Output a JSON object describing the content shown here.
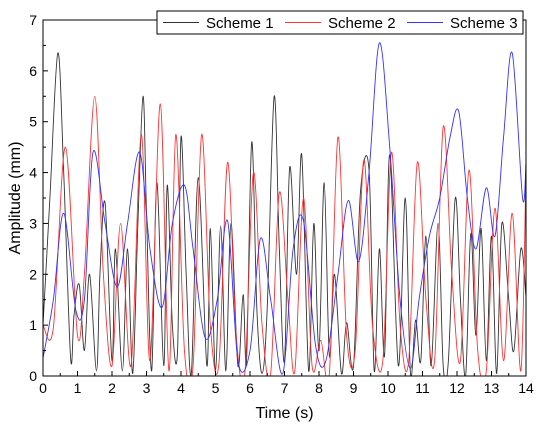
{
  "chart_data": {
    "type": "line",
    "xlabel": "Time (s)",
    "ylabel": "Amplitude (mm)",
    "xlim": [
      0,
      14
    ],
    "ylim": [
      0,
      7
    ],
    "x_ticks": [
      "0",
      "1",
      "2",
      "3",
      "4",
      "5",
      "6",
      "7",
      "8",
      "9",
      "10",
      "11",
      "12",
      "13",
      "14"
    ],
    "y_ticks": [
      "0",
      "1",
      "2",
      "3",
      "4",
      "5",
      "6",
      "7"
    ],
    "grid": false,
    "legend_position": "top-right",
    "series": [
      {
        "name": "Scheme 1",
        "color": "#333333",
        "x": [
          0,
          0.2,
          0.43,
          0.6,
          0.8,
          0.9,
          1.05,
          1.2,
          1.35,
          1.55,
          1.65,
          1.8,
          2.0,
          2.1,
          2.3,
          2.45,
          2.6,
          2.75,
          2.9,
          3.0,
          3.15,
          3.3,
          3.5,
          3.6,
          3.75,
          3.9,
          4.0,
          4.15,
          4.3,
          4.5,
          4.75,
          4.85,
          5.0,
          5.15,
          5.3,
          5.45,
          5.65,
          5.8,
          5.9,
          6.05,
          6.2,
          6.35,
          6.5,
          6.7,
          6.85,
          7.0,
          7.15,
          7.35,
          7.5,
          7.7,
          7.85,
          8.0,
          8.15,
          8.3,
          8.45,
          8.65,
          8.8,
          9.0,
          9.2,
          9.45,
          9.6,
          9.75,
          9.9,
          10.05,
          10.3,
          10.5,
          10.65,
          10.8,
          10.95,
          11.1,
          11.25,
          11.45,
          11.6,
          11.75,
          11.95,
          12.1,
          12.25,
          12.4,
          12.55,
          12.7,
          12.85,
          13.0,
          13.15,
          13.3,
          13.5,
          13.65,
          13.85,
          14.0
        ],
        "y": [
          1.0,
          3.5,
          6.35,
          4.0,
          0.35,
          1.2,
          1.8,
          0.5,
          2.0,
          0.1,
          2.0,
          3.4,
          0.3,
          2.5,
          0.1,
          2.5,
          0.05,
          3.0,
          5.5,
          3.2,
          0.1,
          3.8,
          0.2,
          3.75,
          1.0,
          0.5,
          4.7,
          2.0,
          0.05,
          3.9,
          0.2,
          2.9,
          0.1,
          2.95,
          0.1,
          3.0,
          0.2,
          1.6,
          0.3,
          4.6,
          1.3,
          0.05,
          1.35,
          5.5,
          2.5,
          0.3,
          4.1,
          2.0,
          4.35,
          0.1,
          3.0,
          0.5,
          3.8,
          0.4,
          2.0,
          0.05,
          1.05,
          0.2,
          3.6,
          4.05,
          0.1,
          2.5,
          0.4,
          4.35,
          0.2,
          3.5,
          0.05,
          1.1,
          0.3,
          2.75,
          0.2,
          3.0,
          0.2,
          0.3,
          3.5,
          1.5,
          0.0,
          2.8,
          0.8,
          2.9,
          0.3,
          2.75,
          0.05,
          3.0,
          1.5,
          0.5,
          2.5,
          1.55
        ]
      },
      {
        "name": "Scheme 2",
        "color": "#ff3333",
        "x": [
          0,
          0.3,
          0.65,
          1.0,
          1.2,
          1.5,
          1.75,
          2.0,
          2.25,
          2.55,
          2.85,
          3.1,
          3.4,
          3.65,
          3.85,
          4.1,
          4.35,
          4.6,
          4.85,
          5.1,
          5.35,
          5.6,
          5.85,
          6.1,
          6.35,
          6.6,
          6.85,
          7.1,
          7.3,
          7.55,
          7.8,
          8.05,
          8.3,
          8.55,
          8.8,
          9.05,
          9.3,
          9.55,
          9.85,
          10.1,
          10.35,
          10.6,
          10.85,
          11.1,
          11.35,
          11.6,
          11.85,
          12.1,
          12.35,
          12.6,
          12.85,
          13.1,
          13.35,
          13.6,
          13.85,
          14.0
        ],
        "y": [
          1.0,
          0.95,
          4.5,
          0.8,
          2.0,
          5.5,
          2.0,
          0.2,
          3.0,
          0.2,
          4.75,
          0.3,
          5.35,
          0.1,
          4.75,
          0.5,
          0.2,
          4.75,
          1.0,
          0.25,
          4.2,
          0.8,
          0.05,
          4.0,
          1.0,
          0.05,
          3.6,
          1.5,
          0.1,
          3.5,
          0.2,
          0.7,
          0.05,
          4.7,
          0.8,
          0.5,
          4.25,
          1.0,
          0.3,
          4.4,
          1.0,
          0.3,
          4.2,
          1.5,
          0.3,
          4.9,
          2.0,
          0.3,
          4.05,
          0.5,
          0.1,
          3.3,
          0.3,
          3.2,
          0.1,
          4.1
        ]
      },
      {
        "name": "Scheme 3",
        "color": "#3333ff",
        "x": [
          0,
          0.3,
          0.6,
          0.95,
          1.2,
          1.45,
          1.8,
          2.15,
          2.45,
          2.8,
          3.1,
          3.45,
          3.75,
          4.1,
          4.35,
          4.7,
          5.05,
          5.35,
          5.65,
          6.0,
          6.3,
          6.6,
          6.95,
          7.25,
          7.55,
          7.9,
          8.2,
          8.55,
          8.85,
          9.15,
          9.45,
          9.75,
          10.05,
          10.35,
          10.65,
          10.9,
          11.2,
          11.5,
          11.8,
          12.05,
          12.3,
          12.55,
          12.85,
          13.1,
          13.35,
          13.6,
          13.9,
          14.0
        ],
        "y": [
          0.35,
          1.5,
          3.2,
          1.3,
          1.5,
          4.4,
          3.0,
          1.75,
          3.0,
          4.4,
          2.5,
          1.35,
          3.0,
          3.75,
          2.5,
          0.75,
          1.5,
          3.05,
          0.3,
          0.5,
          2.7,
          1.5,
          0.05,
          2.5,
          3.05,
          0.6,
          0.3,
          2.0,
          3.45,
          2.25,
          4.0,
          6.55,
          4.5,
          1.5,
          0.15,
          1.5,
          2.75,
          3.5,
          4.7,
          5.2,
          3.5,
          2.5,
          3.7,
          2.75,
          4.7,
          6.35,
          3.5,
          4.2
        ]
      }
    ]
  }
}
